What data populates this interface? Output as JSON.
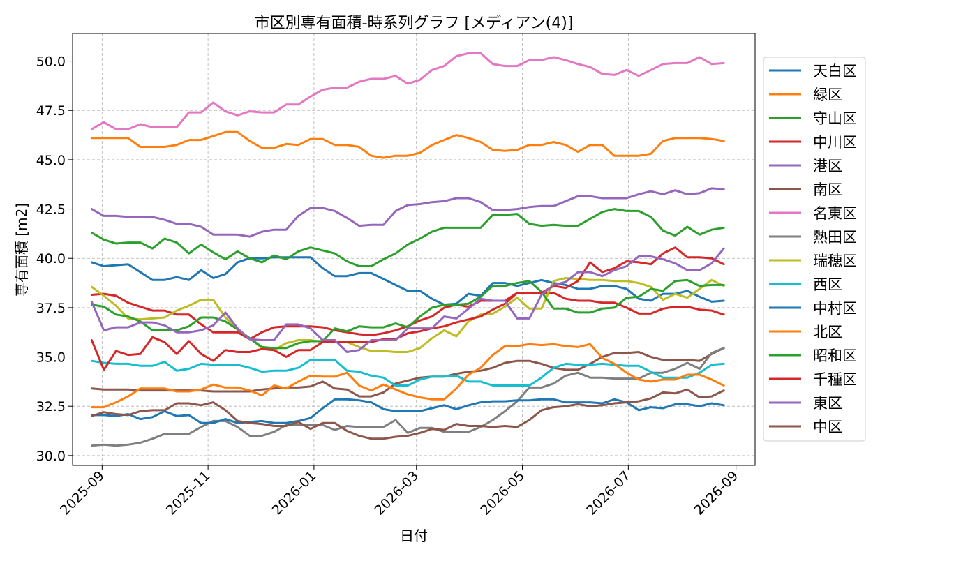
{
  "chart_data": {
    "type": "line",
    "title": "市区別専有面積-時系列グラフ [メディアン(4)]",
    "xlabel": "日付",
    "ylabel": "専有面積 [m2]",
    "xlim": [
      "2025-08-15",
      "2026-09-12"
    ],
    "ylim": [
      29.5,
      51.4
    ],
    "x_ticks": [
      "2025-09",
      "2025-11",
      "2026-01",
      "2026-03",
      "2026-05",
      "2026-07",
      "2026-09"
    ],
    "y_ticks": [
      "30.0",
      "32.5",
      "35.0",
      "37.5",
      "40.0",
      "42.5",
      "45.0",
      "47.5",
      "50.0"
    ],
    "grid": true,
    "legend_position": "right",
    "sample_every_days": 7,
    "x": [
      "2025-08-26",
      "2025-09-02",
      "2025-09-09",
      "2025-09-16",
      "2025-09-23",
      "2025-09-30",
      "2025-10-07",
      "2025-10-14",
      "2025-10-21",
      "2025-10-28",
      "2025-11-04",
      "2025-11-11",
      "2025-11-18",
      "2025-11-25",
      "2025-12-02",
      "2025-12-09",
      "2025-12-16",
      "2025-12-23",
      "2025-12-30",
      "2026-01-06",
      "2026-01-13",
      "2026-01-20",
      "2026-01-27",
      "2026-02-03",
      "2026-02-10",
      "2026-02-17",
      "2026-02-24",
      "2026-03-03",
      "2026-03-10",
      "2026-03-17",
      "2026-03-24",
      "2026-03-31",
      "2026-04-07",
      "2026-04-14",
      "2026-04-21",
      "2026-04-28",
      "2026-05-05",
      "2026-05-12",
      "2026-05-19",
      "2026-05-26",
      "2026-06-02",
      "2026-06-09",
      "2026-06-16",
      "2026-06-23",
      "2026-06-30",
      "2026-07-07",
      "2026-07-14",
      "2026-07-21",
      "2026-07-28",
      "2026-08-04",
      "2026-08-11",
      "2026-08-18",
      "2026-08-25"
    ],
    "series": [
      {
        "name": "天白区",
        "color": "#1f77b4",
        "values": [
          39.8,
          39.6,
          39.65,
          39.7,
          39.3,
          38.9,
          38.9,
          39.05,
          38.9,
          39.4,
          39.0,
          39.2,
          39.8,
          40.0,
          40.0,
          40.05,
          40.05,
          40.05,
          40.05,
          39.5,
          39.1,
          39.1,
          39.25,
          39.25,
          38.95,
          38.65,
          38.35,
          38.35,
          37.95,
          37.65,
          37.7,
          38.2,
          38.1,
          38.75,
          38.75,
          38.6,
          38.75,
          38.9,
          38.75,
          38.65,
          38.45,
          38.45,
          38.6,
          38.6,
          38.45,
          37.95,
          37.85,
          38.2,
          38.2,
          38.35,
          38.05,
          37.8,
          37.85
        ]
      },
      {
        "name": "緑区",
        "color": "#ff7f0e",
        "values": [
          46.1,
          46.1,
          46.1,
          46.1,
          45.65,
          45.65,
          45.65,
          45.75,
          46.0,
          46.0,
          46.2,
          46.4,
          46.4,
          45.95,
          45.6,
          45.6,
          45.8,
          45.75,
          46.05,
          46.05,
          45.75,
          45.75,
          45.65,
          45.2,
          45.1,
          45.2,
          45.2,
          45.35,
          45.75,
          46.0,
          46.25,
          46.1,
          45.9,
          45.5,
          45.45,
          45.5,
          45.75,
          45.75,
          45.9,
          45.75,
          45.4,
          45.75,
          45.75,
          45.2,
          45.2,
          45.2,
          45.3,
          45.95,
          46.1,
          46.1,
          46.1,
          46.05,
          45.95
        ]
      },
      {
        "name": "守山区",
        "color": "#2ca02c",
        "values": [
          41.3,
          40.95,
          40.75,
          40.8,
          40.8,
          40.5,
          41.0,
          40.8,
          40.25,
          40.7,
          40.3,
          39.95,
          40.35,
          40.0,
          39.8,
          40.15,
          39.95,
          40.35,
          40.55,
          40.4,
          40.25,
          39.85,
          39.6,
          39.6,
          39.95,
          40.25,
          40.7,
          41.0,
          41.35,
          41.55,
          41.55,
          41.55,
          41.55,
          42.2,
          42.2,
          42.25,
          41.75,
          41.65,
          41.7,
          41.65,
          41.65,
          42.0,
          42.35,
          42.5,
          42.4,
          42.4,
          42.1,
          41.4,
          41.15,
          41.6,
          41.2,
          41.45,
          41.55
        ]
      },
      {
        "name": "中川区",
        "color": "#d62728",
        "values": [
          38.15,
          38.2,
          38.1,
          37.75,
          37.55,
          37.35,
          37.35,
          37.15,
          37.15,
          36.65,
          36.25,
          36.25,
          36.25,
          35.9,
          36.25,
          36.5,
          36.55,
          36.55,
          36.55,
          36.5,
          36.35,
          36.25,
          36.15,
          36.1,
          36.2,
          36.35,
          36.55,
          36.85,
          37.05,
          37.5,
          37.65,
          37.55,
          37.85,
          37.85,
          37.85,
          38.25,
          38.25,
          38.25,
          38.25,
          37.95,
          37.85,
          37.85,
          37.75,
          37.75,
          37.5,
          37.2,
          37.2,
          37.45,
          37.55,
          37.55,
          37.4,
          37.35,
          37.15
        ]
      },
      {
        "name": "港区",
        "color": "#9467bd",
        "values": [
          42.5,
          42.15,
          42.15,
          42.1,
          42.1,
          42.1,
          41.95,
          41.75,
          41.75,
          41.6,
          41.2,
          41.2,
          41.2,
          41.1,
          41.35,
          41.45,
          41.45,
          42.15,
          42.55,
          42.55,
          42.4,
          42.05,
          41.65,
          41.7,
          41.7,
          42.4,
          42.7,
          42.75,
          42.85,
          42.9,
          43.05,
          43.05,
          42.85,
          42.45,
          42.45,
          42.5,
          42.6,
          42.65,
          42.65,
          42.9,
          43.15,
          43.15,
          43.05,
          43.05,
          43.05,
          43.25,
          43.4,
          43.25,
          43.45,
          43.25,
          43.3,
          43.55,
          43.5
        ]
      },
      {
        "name": "南区",
        "color": "#8c564b",
        "values": [
          33.4,
          33.35,
          33.35,
          33.35,
          33.3,
          33.3,
          33.3,
          33.3,
          33.3,
          33.3,
          33.25,
          33.25,
          33.25,
          33.25,
          33.35,
          33.4,
          33.45,
          33.45,
          33.5,
          33.75,
          33.4,
          33.35,
          33.0,
          33.0,
          33.2,
          33.65,
          33.8,
          33.95,
          34.0,
          34.0,
          34.15,
          34.25,
          34.3,
          34.45,
          34.7,
          34.8,
          34.8,
          34.65,
          34.45,
          34.35,
          34.35,
          34.65,
          35.0,
          35.2,
          35.2,
          35.25,
          35.0,
          34.85,
          34.85,
          34.85,
          34.8,
          35.15,
          35.45
        ]
      },
      {
        "name": "名東区",
        "color": "#e377c2",
        "values": [
          46.55,
          46.9,
          46.55,
          46.55,
          46.8,
          46.65,
          46.65,
          46.65,
          47.4,
          47.4,
          47.9,
          47.45,
          47.25,
          47.45,
          47.4,
          47.4,
          47.8,
          47.8,
          48.2,
          48.55,
          48.65,
          48.65,
          48.95,
          49.1,
          49.1,
          49.25,
          48.85,
          49.05,
          49.55,
          49.75,
          50.25,
          50.4,
          50.4,
          49.85,
          49.75,
          49.75,
          50.05,
          50.05,
          50.2,
          50.05,
          49.85,
          49.7,
          49.35,
          49.3,
          49.55,
          49.25,
          49.55,
          49.85,
          49.9,
          49.9,
          50.2,
          49.85,
          49.9
        ]
      },
      {
        "name": "熱田区",
        "color": "#7f7f7f",
        "values": [
          30.5,
          30.55,
          30.5,
          30.55,
          30.65,
          30.85,
          31.1,
          31.1,
          31.1,
          31.45,
          31.75,
          31.75,
          31.45,
          31.0,
          31.0,
          31.2,
          31.55,
          31.55,
          31.55,
          31.55,
          31.3,
          31.5,
          31.45,
          31.45,
          31.45,
          31.8,
          31.15,
          31.4,
          31.4,
          31.2,
          31.2,
          31.2,
          31.45,
          31.8,
          32.25,
          32.75,
          33.45,
          33.45,
          33.65,
          34.05,
          34.2,
          33.95,
          33.95,
          33.9,
          33.9,
          33.9,
          34.2,
          34.2,
          34.4,
          34.7,
          34.4,
          35.2,
          35.45
        ]
      },
      {
        "name": "瑞穂区",
        "color": "#bcbd22",
        "values": [
          38.55,
          38.1,
          37.6,
          36.95,
          36.9,
          36.95,
          37.0,
          37.35,
          37.6,
          37.9,
          37.9,
          37.0,
          36.4,
          35.95,
          35.45,
          35.35,
          35.7,
          35.85,
          35.85,
          35.75,
          35.75,
          35.75,
          35.5,
          35.3,
          35.3,
          35.25,
          35.25,
          35.45,
          35.95,
          36.35,
          36.05,
          36.8,
          37.15,
          37.2,
          37.55,
          38.0,
          37.45,
          37.45,
          38.85,
          39.0,
          38.95,
          38.9,
          38.9,
          38.85,
          38.85,
          38.75,
          38.55,
          37.9,
          38.2,
          38.0,
          38.45,
          38.9,
          38.6
        ]
      },
      {
        "name": "西区",
        "color": "#17becf",
        "values": [
          34.8,
          34.7,
          34.65,
          34.65,
          34.55,
          34.55,
          34.75,
          34.3,
          34.4,
          34.65,
          34.6,
          34.6,
          34.6,
          34.45,
          34.25,
          34.3,
          34.3,
          34.45,
          34.85,
          34.85,
          34.85,
          34.3,
          34.25,
          34.05,
          33.95,
          33.55,
          33.55,
          33.85,
          34.0,
          34.0,
          34.05,
          33.75,
          33.75,
          33.55,
          33.55,
          33.55,
          33.55,
          33.95,
          34.45,
          34.65,
          34.6,
          34.6,
          34.65,
          34.6,
          34.55,
          34.55,
          34.25,
          33.95,
          33.95,
          33.95,
          34.2,
          34.6,
          34.65
        ]
      },
      {
        "name": "中村区",
        "color": "#1f77b4",
        "values": [
          32.05,
          32.05,
          32.0,
          32.1,
          31.85,
          31.95,
          32.25,
          32.0,
          32.05,
          31.65,
          31.65,
          31.85,
          31.65,
          31.7,
          31.75,
          31.65,
          31.65,
          31.75,
          31.9,
          32.4,
          32.85,
          32.85,
          32.8,
          32.7,
          32.35,
          32.25,
          32.25,
          32.25,
          32.4,
          32.55,
          32.35,
          32.55,
          32.7,
          32.75,
          32.75,
          32.8,
          32.8,
          32.85,
          32.85,
          32.7,
          32.7,
          32.7,
          32.65,
          32.85,
          32.7,
          32.3,
          32.45,
          32.4,
          32.6,
          32.6,
          32.5,
          32.65,
          32.55
        ]
      },
      {
        "name": "北区",
        "color": "#ff7f0e",
        "values": [
          32.45,
          32.45,
          32.7,
          33.0,
          33.4,
          33.4,
          33.4,
          33.25,
          33.25,
          33.35,
          33.6,
          33.45,
          33.45,
          33.3,
          33.05,
          33.55,
          33.4,
          33.75,
          34.05,
          34.0,
          34.0,
          34.2,
          33.55,
          33.3,
          33.6,
          33.35,
          33.1,
          32.95,
          32.85,
          32.85,
          33.4,
          34.1,
          34.45,
          35.1,
          35.55,
          35.55,
          35.65,
          35.6,
          35.65,
          35.55,
          35.5,
          35.65,
          34.95,
          34.65,
          34.2,
          33.85,
          33.75,
          33.85,
          33.85,
          34.1,
          34.1,
          33.85,
          33.55
        ]
      },
      {
        "name": "昭和区",
        "color": "#2ca02c",
        "values": [
          37.65,
          37.55,
          37.15,
          37.05,
          36.8,
          36.35,
          36.35,
          36.35,
          36.55,
          37.0,
          37.0,
          36.8,
          36.4,
          35.95,
          35.5,
          35.45,
          35.45,
          35.7,
          35.8,
          35.8,
          36.45,
          36.3,
          36.55,
          36.5,
          36.5,
          36.7,
          36.5,
          37.05,
          37.5,
          37.65,
          37.65,
          37.7,
          38.05,
          38.6,
          38.6,
          38.75,
          38.85,
          38.3,
          37.45,
          37.45,
          37.25,
          37.25,
          37.45,
          37.5,
          38.0,
          38.05,
          38.45,
          38.35,
          38.85,
          38.9,
          38.6,
          38.65,
          38.65
        ]
      },
      {
        "name": "千種区",
        "color": "#d62728",
        "values": [
          35.85,
          34.35,
          35.3,
          35.1,
          35.15,
          36.0,
          35.75,
          35.15,
          35.8,
          35.15,
          34.8,
          35.35,
          35.25,
          35.25,
          35.4,
          35.35,
          35.0,
          35.35,
          35.35,
          35.75,
          35.75,
          35.75,
          35.75,
          35.75,
          35.9,
          35.9,
          36.2,
          36.3,
          36.45,
          36.55,
          36.75,
          36.9,
          37.05,
          37.4,
          37.7,
          38.25,
          38.25,
          38.25,
          38.6,
          38.5,
          38.85,
          39.8,
          39.3,
          39.5,
          39.85,
          39.8,
          39.7,
          40.25,
          40.55,
          40.05,
          40.05,
          40.0,
          39.7
        ]
      },
      {
        "name": "東区",
        "color": "#9467bd",
        "values": [
          37.8,
          36.35,
          36.5,
          36.5,
          36.75,
          36.75,
          36.6,
          36.25,
          36.25,
          36.35,
          36.6,
          37.25,
          36.45,
          35.9,
          35.85,
          35.85,
          36.65,
          36.65,
          36.45,
          35.85,
          35.85,
          35.25,
          35.35,
          35.85,
          35.85,
          35.85,
          36.45,
          36.45,
          36.45,
          37.05,
          36.95,
          37.45,
          37.95,
          37.85,
          37.85,
          36.95,
          36.95,
          38.15,
          38.65,
          38.8,
          39.3,
          39.3,
          39.1,
          39.4,
          39.6,
          40.1,
          40.1,
          39.95,
          39.75,
          39.4,
          39.4,
          39.75,
          40.5
        ]
      },
      {
        "name": "中区",
        "color": "#8c564b",
        "values": [
          32.0,
          32.2,
          32.1,
          32.05,
          32.25,
          32.3,
          32.3,
          32.65,
          32.65,
          32.55,
          32.7,
          32.3,
          31.75,
          31.65,
          31.6,
          31.5,
          31.5,
          31.7,
          31.35,
          31.65,
          31.65,
          31.25,
          31.0,
          30.85,
          30.85,
          30.95,
          31.0,
          31.15,
          31.35,
          31.3,
          31.6,
          31.5,
          31.5,
          31.45,
          31.5,
          31.45,
          31.8,
          32.3,
          32.45,
          32.5,
          32.6,
          32.5,
          32.55,
          32.65,
          32.7,
          32.75,
          32.9,
          33.2,
          33.15,
          33.35,
          32.95,
          33.0,
          33.3
        ]
      }
    ]
  }
}
